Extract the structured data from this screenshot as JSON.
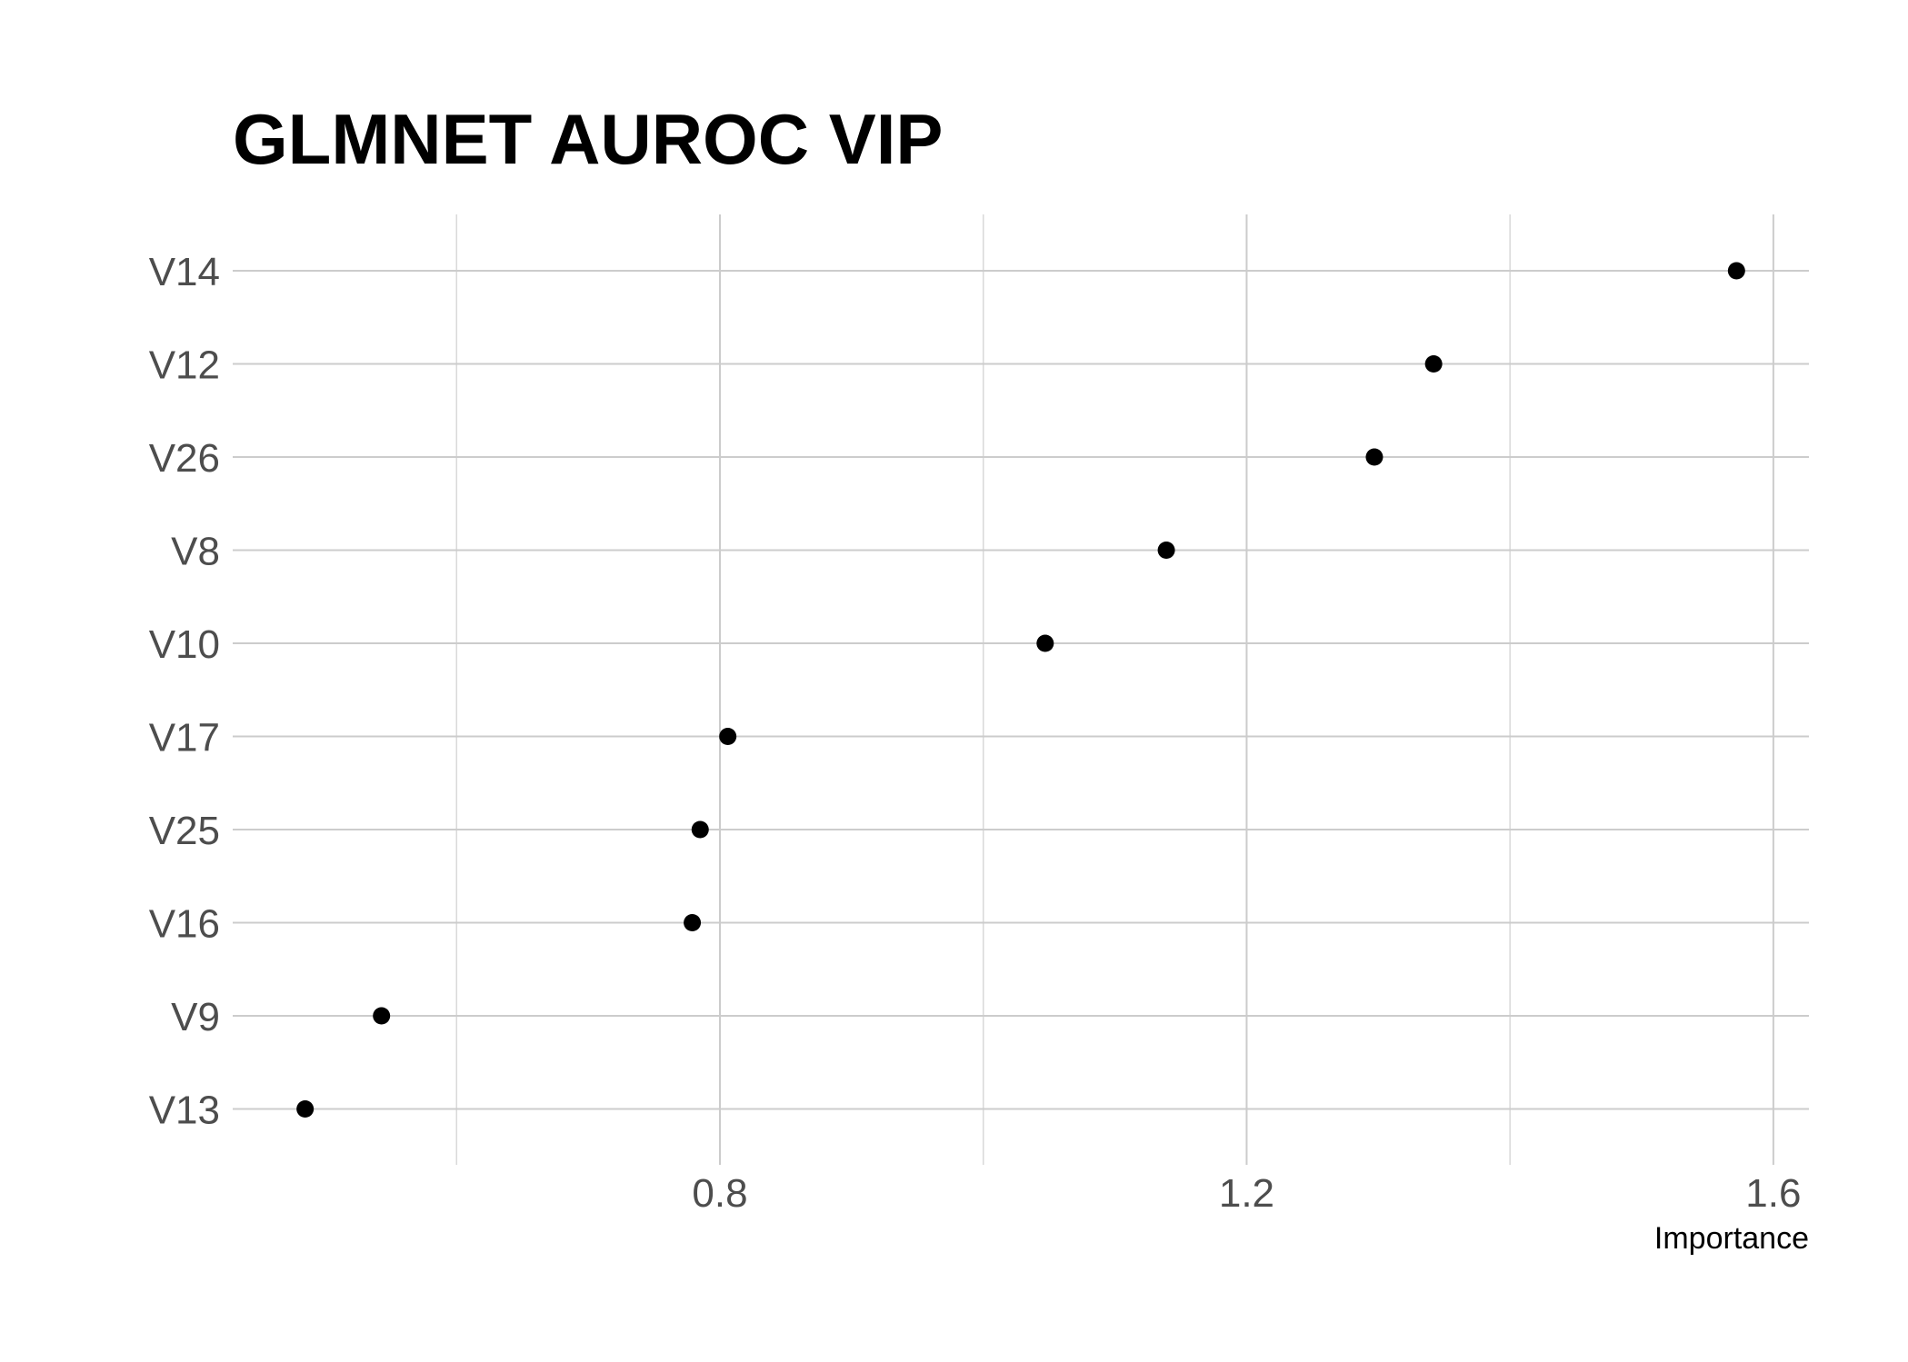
{
  "chart_data": {
    "type": "scatter",
    "title": "GLMNET AUROC VIP",
    "xlabel": "Importance",
    "ylabel": "",
    "categories": [
      "V14",
      "V12",
      "V26",
      "V8",
      "V10",
      "V17",
      "V25",
      "V16",
      "V9",
      "V13"
    ],
    "values": [
      1.572,
      1.342,
      1.297,
      1.139,
      1.047,
      0.806,
      0.785,
      0.779,
      0.543,
      0.485
    ],
    "xlim": [
      0.43,
      1.627
    ],
    "x_ticks": [
      0.8,
      1.2,
      1.6
    ],
    "x_tick_labels": [
      "0.8",
      "1.2",
      "1.6"
    ],
    "x_minor_ticks": [
      0.6,
      1.0,
      1.4
    ],
    "grid": true,
    "legend": "none",
    "point_color": "#000000",
    "grid_color": "#cccccc"
  }
}
